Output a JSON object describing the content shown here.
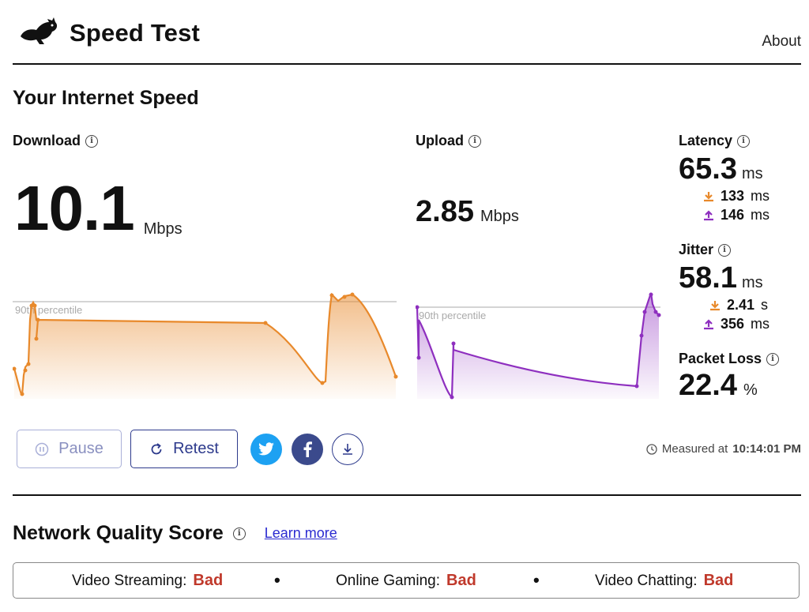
{
  "header": {
    "title": "Speed Test",
    "about_label": "About"
  },
  "speed_section": {
    "title": "Your Internet Speed"
  },
  "download": {
    "label": "Download",
    "value": "10.1",
    "unit": "Mbps",
    "percentile_label": "90th percentile",
    "color": "#e8892b"
  },
  "upload": {
    "label": "Upload",
    "value": "2.85",
    "unit": "Mbps",
    "percentile_label": "90th percentile",
    "color": "#8e2fbf"
  },
  "latency": {
    "label": "Latency",
    "value": "65.3",
    "unit": "ms",
    "download_value": "133",
    "download_unit": "ms",
    "upload_value": "146",
    "upload_unit": "ms"
  },
  "jitter": {
    "label": "Jitter",
    "value": "58.1",
    "unit": "ms",
    "download_value": "2.41",
    "download_unit": "s",
    "upload_value": "356",
    "upload_unit": "ms"
  },
  "packet_loss": {
    "label": "Packet Loss",
    "value": "22.4",
    "unit": "%"
  },
  "controls": {
    "pause_label": "Pause",
    "retest_label": "Retest",
    "twitter_color": "#1da1f2",
    "facebook_color": "#3b4a8c"
  },
  "measured": {
    "prefix": "Measured at",
    "time": "10:14:01 PM"
  },
  "quality_section": {
    "title": "Network Quality Score",
    "learn_more": "Learn more"
  },
  "quality": [
    {
      "label": "Video Streaming:",
      "value": "Bad"
    },
    {
      "label": "Online Gaming:",
      "value": "Bad"
    },
    {
      "label": "Video Chatting:",
      "value": "Bad"
    }
  ],
  "chart_data": [
    {
      "type": "area",
      "series": [
        {
          "name": "Download",
          "values": [
            3,
            0,
            6,
            10,
            10,
            9,
            9,
            3,
            0,
            0,
            10.5,
            10,
            10.3,
            0.5
          ]
        }
      ],
      "reference_line": "90th percentile"
    },
    {
      "type": "area",
      "series": [
        {
          "name": "Upload",
          "values": [
            4,
            3,
            0.5,
            0,
            2.2,
            2,
            1.3,
            0.4,
            0.2,
            1.8,
            3.3,
            3
          ]
        }
      ],
      "reference_line": "90th percentile"
    }
  ]
}
